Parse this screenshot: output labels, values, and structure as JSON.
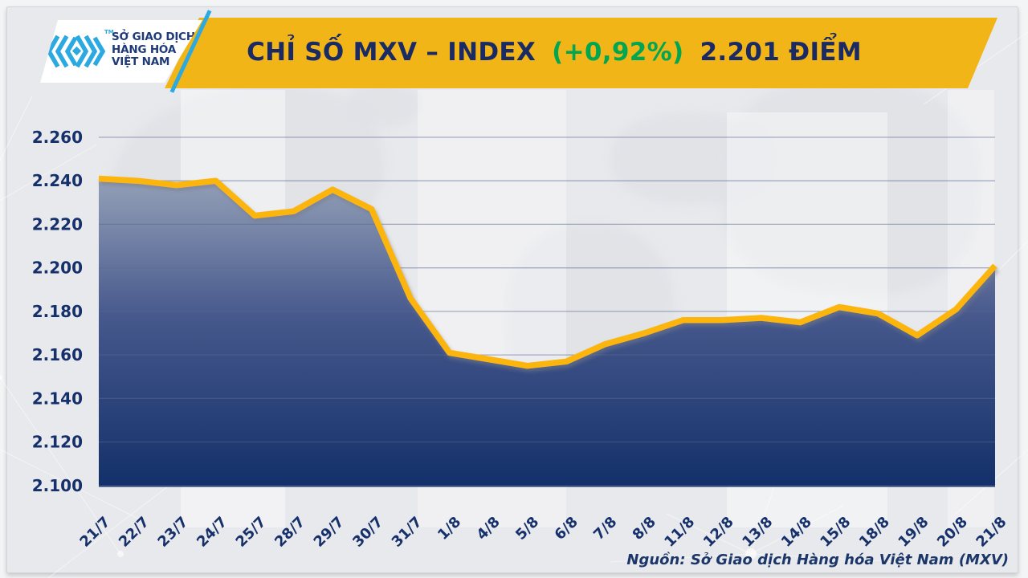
{
  "header": {
    "logo": {
      "line1": "SỞ GIAO DỊCH",
      "line2": "HÀNG HÓA",
      "line3": "VIỆT NAM",
      "trademark": "TM",
      "icon": "mxv-chevrons-icon",
      "icon_color": "#2BA9E0",
      "text_color": "#1F3A78"
    },
    "banner": {
      "color": "#F2B517",
      "title_prefix": "CHỈ SỐ MXV – INDEX",
      "title_change": "(+0,92%)",
      "title_suffix": "2.201 ĐIỂM",
      "title_color": "#1A2A64",
      "change_color": "#00A651"
    }
  },
  "chart_data": {
    "type": "area",
    "title": "CHỈ SỐ MXV – INDEX (+0,92%) 2.201 ĐIỂM",
    "categories": [
      "21/7",
      "22/7",
      "23/7",
      "24/7",
      "25/7",
      "28/7",
      "29/7",
      "30/7",
      "31/7",
      "1/8",
      "4/8",
      "5/8",
      "6/8",
      "7/8",
      "8/8",
      "11/8",
      "12/8",
      "13/8",
      "14/8",
      "15/8",
      "18/8",
      "19/8",
      "20/8",
      "21/8"
    ],
    "values": [
      2241,
      2240,
      2238,
      2240,
      2224,
      2226,
      2236,
      2227,
      2186,
      2161,
      2158,
      2155,
      2157,
      2165,
      2170,
      2176,
      2176,
      2177,
      2175,
      2182,
      2179,
      2169,
      2181,
      2201
    ],
    "unit": "điểm",
    "ylim": [
      2100,
      2260
    ],
    "y_tick_step": 20,
    "y_tick_labels": [
      "2.100",
      "2.120",
      "2.140",
      "2.160",
      "2.180",
      "2.200",
      "2.220",
      "2.240",
      "2.260"
    ],
    "grid": true,
    "legend": false,
    "line_color": "#FBB511",
    "fill_gradient_top": "#94A0B8",
    "fill_gradient_mid": "#46588C",
    "fill_gradient_bottom": "#13306A",
    "gridline_color": "rgba(90,104,143,0.5)",
    "axis_label_color": "#16306B"
  },
  "footer": {
    "source": "Nguồn: Sở Giao dịch Hàng hóa Việt Nam (MXV)"
  }
}
